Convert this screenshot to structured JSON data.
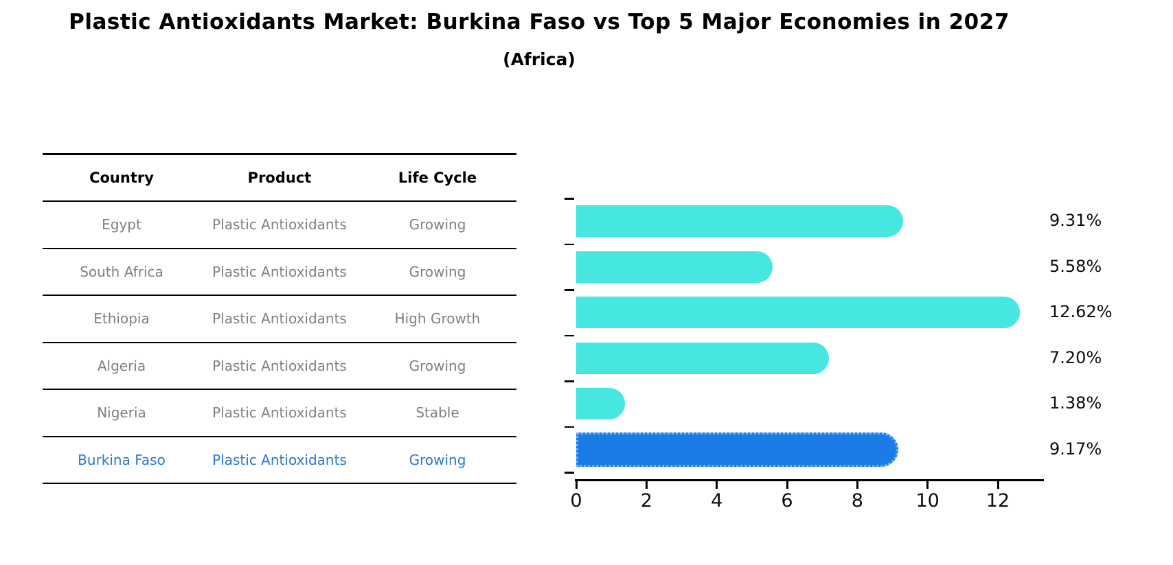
{
  "title": "Plastic Antioxidants Market: Burkina Faso vs Top 5 Major Economies in 2027",
  "subtitle": "(Africa)",
  "table": {
    "columns": [
      "Country",
      "Product",
      "Life Cycle"
    ],
    "rows": [
      {
        "country": "Egypt",
        "product": "Plastic Antioxidants",
        "life_cycle": "Growing",
        "highlight": false
      },
      {
        "country": "South Africa",
        "product": "Plastic Antioxidants",
        "life_cycle": "Growing",
        "highlight": false
      },
      {
        "country": "Ethiopia",
        "product": "Plastic Antioxidants",
        "life_cycle": "High Growth",
        "highlight": false
      },
      {
        "country": "Algeria",
        "product": "Plastic Antioxidants",
        "life_cycle": "Growing",
        "highlight": false
      },
      {
        "country": "Nigeria",
        "product": "Plastic Antioxidants",
        "life_cycle": "Stable",
        "highlight": false
      },
      {
        "country": "Burkina Faso",
        "product": "Plastic Antioxidants",
        "life_cycle": "Growing",
        "highlight": true
      }
    ]
  },
  "chart_data": {
    "type": "bar",
    "orientation": "horizontal",
    "categories": [
      "Egypt",
      "South Africa",
      "Ethiopia",
      "Algeria",
      "Nigeria",
      "Burkina Faso"
    ],
    "values": [
      9.31,
      5.58,
      12.62,
      7.2,
      1.38,
      9.17
    ],
    "value_labels": [
      "9.31%",
      "5.58%",
      "12.62%",
      "7.20%",
      "1.38%",
      "9.17%"
    ],
    "title": "Plastic Antioxidants Market: Burkina Faso vs Top 5 Major Economies in 2027 (Africa)",
    "xlabel": "",
    "ylabel": "",
    "xlim": [
      0,
      13.3
    ],
    "xticks": [
      0,
      2,
      4,
      6,
      8,
      10,
      12
    ],
    "grid": false,
    "legend": false,
    "bar_color": "#46e6e1",
    "highlight_index": 5,
    "highlight_bar_color": "#1b7ce8",
    "highlight_border_style": "dotted",
    "highlight_border_color": "#74b4f4"
  },
  "colors": {
    "background": "#ffffff",
    "table_text": "#7f7f7f",
    "table_header_text": "#000000",
    "highlight_text": "#2878c8",
    "axis": "#000000"
  }
}
